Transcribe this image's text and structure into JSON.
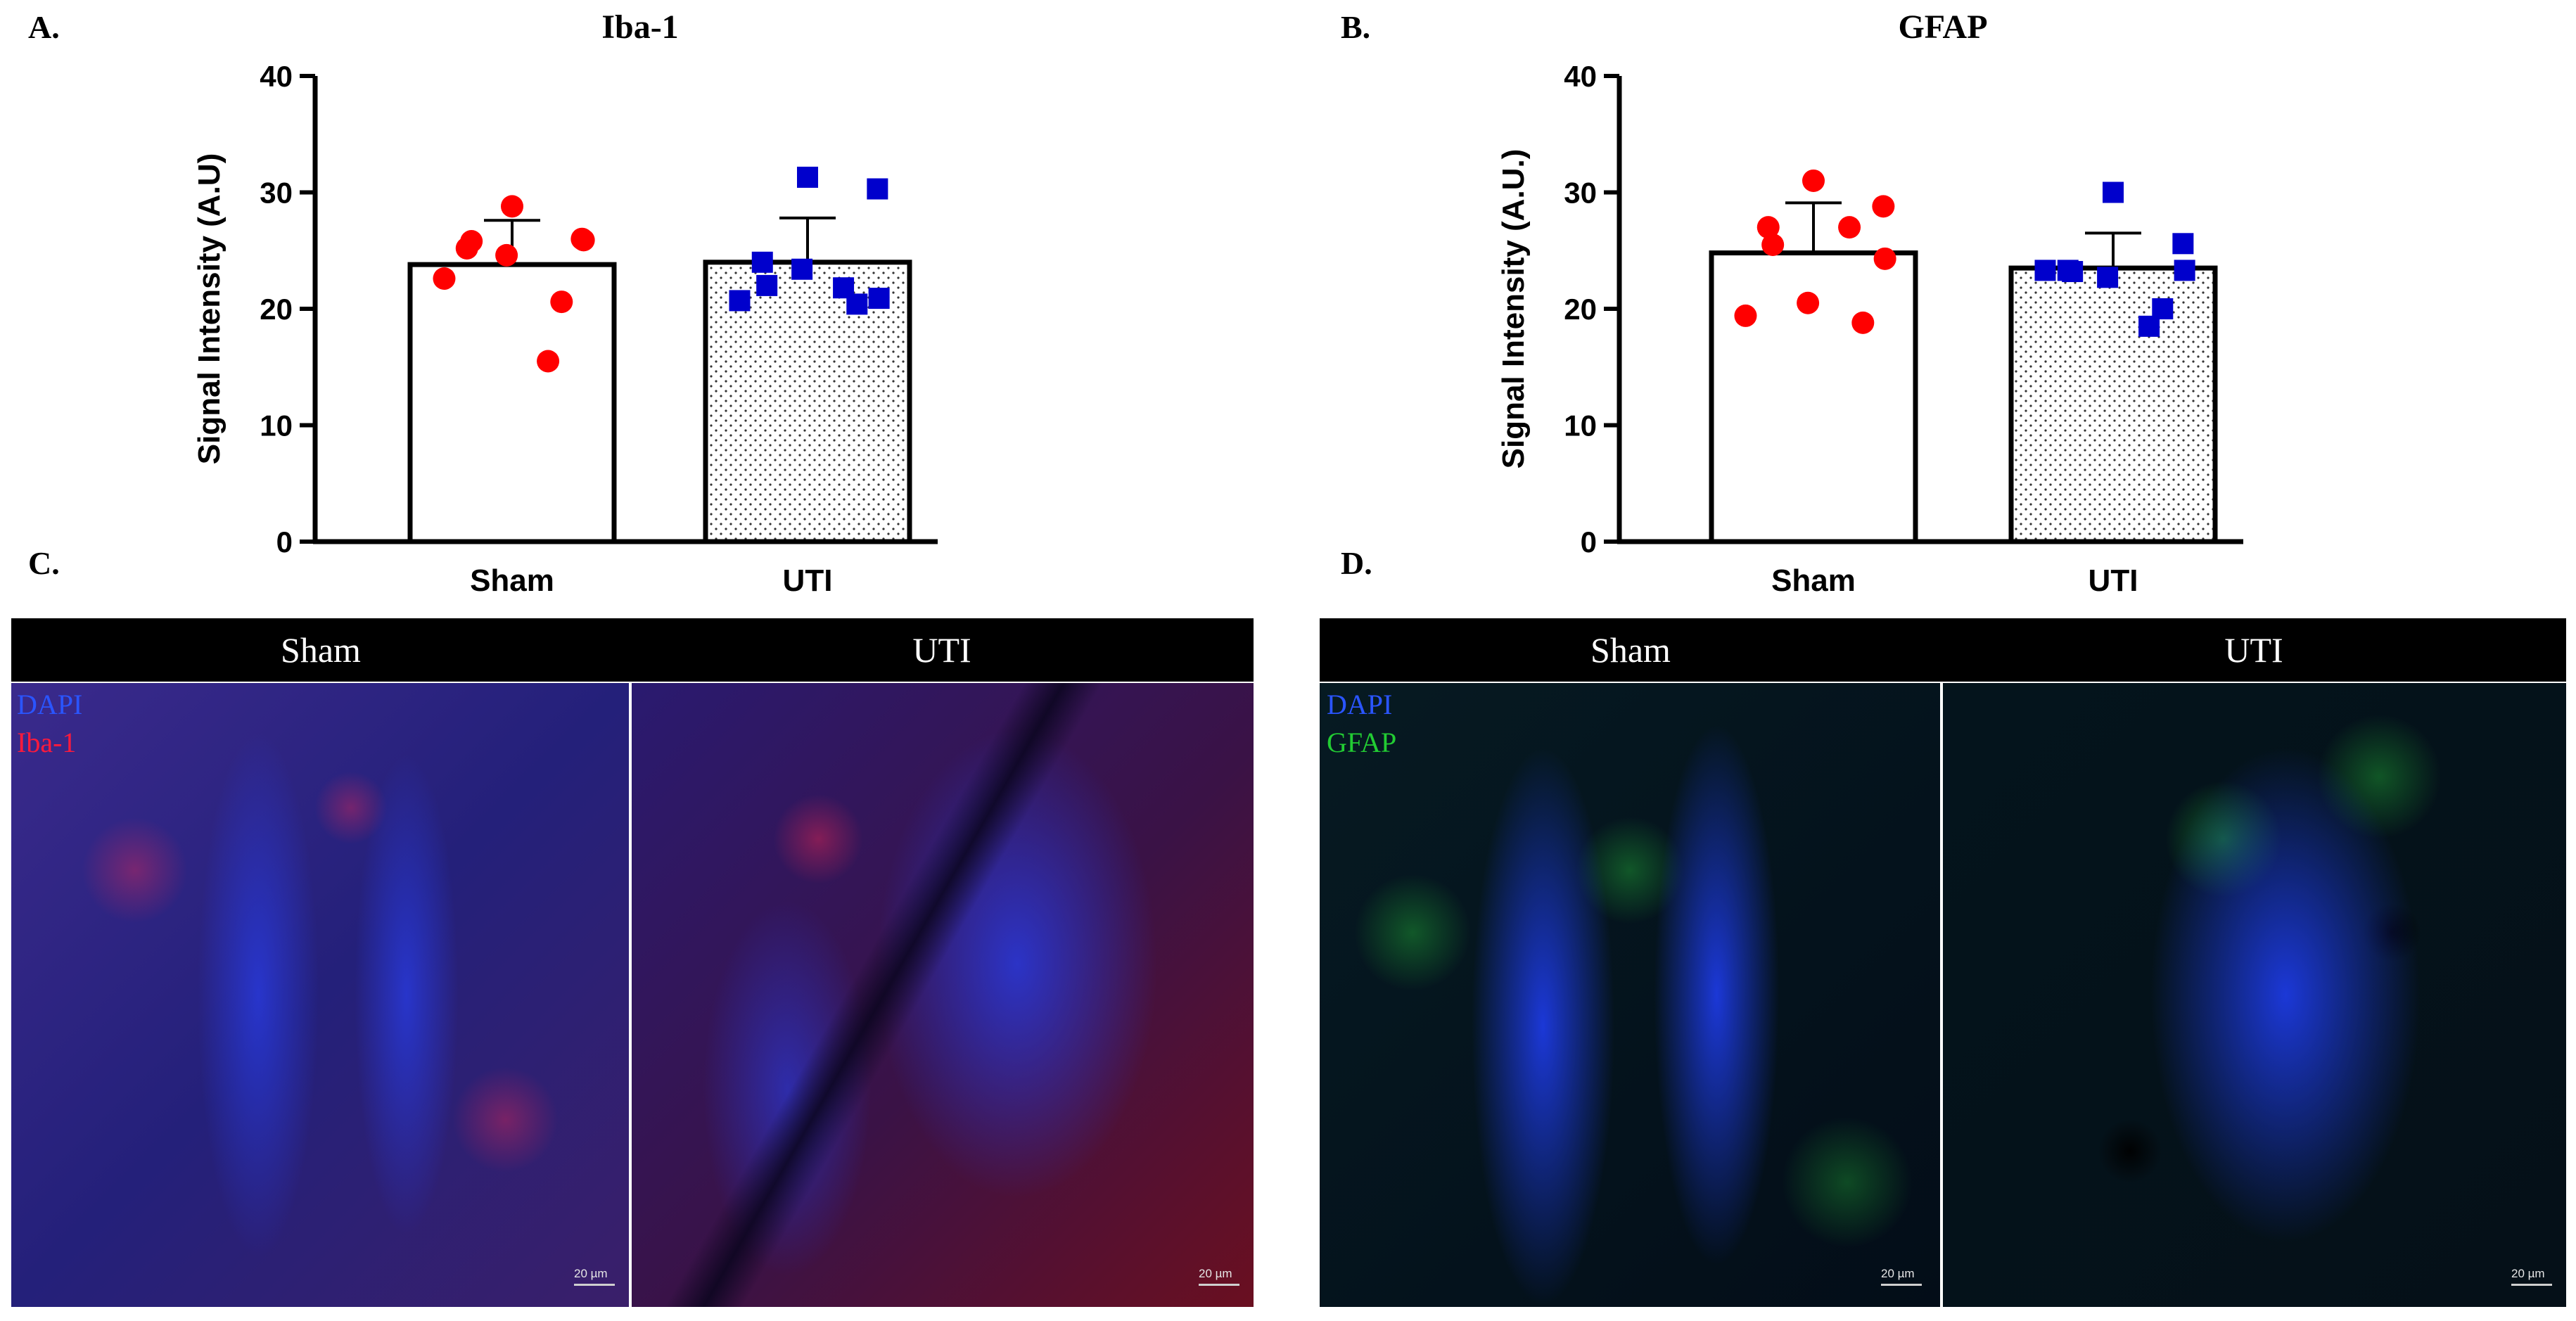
{
  "panels": {
    "a": "A.",
    "b": "B.",
    "c": "C.",
    "d": "D."
  },
  "chart_data": [
    {
      "type": "bar",
      "title": "Iba-1",
      "ylabel": "Signal Intensity (A.U)",
      "xlabel": "",
      "categories": [
        "Sham",
        "UTI"
      ],
      "ylim": [
        0,
        40
      ],
      "yticks": [
        0,
        10,
        20,
        30,
        40
      ],
      "grid": false,
      "series": [
        {
          "values": [
            23.8,
            24.0
          ],
          "error": [
            3.8,
            3.8
          ]
        }
      ],
      "points": [
        {
          "group": "Sham",
          "marker": "circle",
          "color": "#ff0000",
          "values": [
            28.8,
            26.0,
            25.2,
            25.8,
            25.9,
            24.6,
            22.6,
            20.6,
            15.5
          ]
        },
        {
          "group": "UTI",
          "marker": "square",
          "color": "#0000cc",
          "values": [
            31.3,
            30.3,
            24.0,
            22.0,
            20.9,
            23.4,
            20.7,
            20.4,
            21.8
          ]
        }
      ],
      "bar_fill": [
        "solid-white",
        "dotted"
      ]
    },
    {
      "type": "bar",
      "title": "GFAP",
      "ylabel": "Signal Intensity (A.U.)",
      "xlabel": "",
      "categories": [
        "Sham",
        "UTI"
      ],
      "ylim": [
        0,
        40
      ],
      "yticks": [
        0,
        10,
        20,
        30,
        40
      ],
      "grid": false,
      "series": [
        {
          "values": [
            24.8,
            23.5
          ],
          "error": [
            4.3,
            3.0
          ]
        }
      ],
      "points": [
        {
          "group": "Sham",
          "marker": "circle",
          "color": "#ff0000",
          "values": [
            31.0,
            28.8,
            27.0,
            25.5,
            24.3,
            20.5,
            19.4,
            18.8,
            27.0
          ]
        },
        {
          "group": "UTI",
          "marker": "square",
          "color": "#0000cc",
          "values": [
            30.0,
            25.6,
            23.3,
            23.2,
            23.3,
            22.7,
            23.3,
            20.0,
            18.5
          ]
        }
      ],
      "bar_fill": [
        "solid-white",
        "dotted"
      ]
    }
  ],
  "micrographs": {
    "c": {
      "col1": "Sham",
      "col2": "UTI",
      "stain1": "DAPI",
      "stain2": "Iba-1",
      "scale1": "20 µm",
      "scale2": "20 µm",
      "colors": {
        "stain1": "#2a55ff",
        "stain2": "#ff1a3c"
      }
    },
    "d": {
      "col1": "Sham",
      "col2": "UTI",
      "stain1": "DAPI",
      "stain2": "GFAP",
      "scale1": "20 µm",
      "scale2": "20 µm",
      "colors": {
        "stain1": "#2a55ff",
        "stain2": "#22cc33"
      }
    }
  }
}
